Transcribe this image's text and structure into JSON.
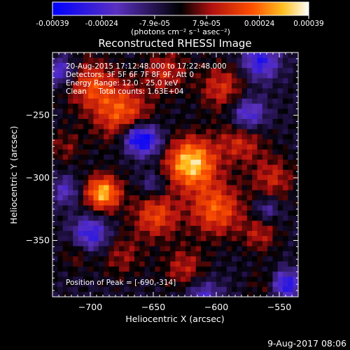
{
  "chart_data": {
    "type": "heatmap",
    "title": "Reconstructed RHESSI Image",
    "colorbar": {
      "ticks": [
        "-0.00039",
        "-0.00024",
        "-7.9e-05",
        "7.9e-05",
        "0.00024",
        "0.00039"
      ],
      "tick_values": [
        -0.00039,
        -0.00024,
        -7.9e-05,
        7.9e-05,
        0.00024,
        0.00039
      ],
      "range": [
        -0.00039,
        0.00039
      ],
      "unit_label": "(photons cm⁻² s⁻¹ asec⁻²)"
    },
    "info_lines": [
      "20-Aug-2015 17:12:48.000 to 17:22:48.000",
      "Detectors: 3F 5F 6F 7F 8F 9F, Att 0",
      "Energy Range: 12.0 - 25.0 keV",
      "Clean     Total counts: 1.63E+04"
    ],
    "peak_label": "Position of Peak = [-690,-314]",
    "xlabel": "Heliocentric X (arcsec)",
    "ylabel": "Heliocentric Y (arcsec)",
    "xlim": [
      -730,
      -535
    ],
    "ylim": [
      -395,
      -200
    ],
    "x_ticks": [
      {
        "value": -700,
        "label": "−700"
      },
      {
        "value": -650,
        "label": "−650"
      },
      {
        "value": -600,
        "label": "−600"
      },
      {
        "value": -550,
        "label": "−550"
      }
    ],
    "y_ticks": [
      {
        "value": -250,
        "label": "−250"
      },
      {
        "value": -300,
        "label": "−300"
      },
      {
        "value": -350,
        "label": "−350"
      }
    ],
    "grid": false,
    "colormap": [
      "#0000ff",
      "#5a30c0",
      "#000000",
      "#b01010",
      "#ff5000",
      "#ffc020",
      "#ffffff"
    ],
    "blobs": [
      {
        "x": -620,
        "y": -288,
        "v": 0.00038,
        "s": 14
      },
      {
        "x": -690,
        "y": -312,
        "v": 0.00035,
        "s": 10
      },
      {
        "x": -675,
        "y": -248,
        "v": 0.00024,
        "s": 16
      },
      {
        "x": -700,
        "y": -225,
        "v": 0.0002,
        "s": 14
      },
      {
        "x": -600,
        "y": -325,
        "v": 0.00025,
        "s": 15
      },
      {
        "x": -648,
        "y": -330,
        "v": 0.00022,
        "s": 13
      },
      {
        "x": -580,
        "y": -270,
        "v": 0.00018,
        "s": 13
      },
      {
        "x": -555,
        "y": -300,
        "v": 0.00016,
        "s": 12
      },
      {
        "x": -595,
        "y": -228,
        "v": 0.00018,
        "s": 13
      },
      {
        "x": -640,
        "y": -215,
        "v": 0.00016,
        "s": 12
      },
      {
        "x": -565,
        "y": -345,
        "v": 0.00014,
        "s": 10
      },
      {
        "x": -675,
        "y": -362,
        "v": 0.00012,
        "s": 12
      },
      {
        "x": -720,
        "y": -275,
        "v": 0.0001,
        "s": 10
      },
      {
        "x": -625,
        "y": -372,
        "v": 0.00015,
        "s": 12
      },
      {
        "x": -710,
        "y": -360,
        "v": 0.0001,
        "s": 9
      },
      {
        "x": -560,
        "y": -385,
        "v": 8e-05,
        "s": 10
      },
      {
        "x": -655,
        "y": -270,
        "v": -0.00026,
        "s": 9
      },
      {
        "x": -665,
        "y": -268,
        "v": -0.00022,
        "s": 8
      },
      {
        "x": -575,
        "y": -250,
        "v": -0.00025,
        "s": 10
      },
      {
        "x": -700,
        "y": -345,
        "v": -0.00026,
        "s": 10
      },
      {
        "x": -565,
        "y": -207,
        "v": -0.00026,
        "s": 10
      },
      {
        "x": -723,
        "y": -215,
        "v": -0.00022,
        "s": 8
      },
      {
        "x": -720,
        "y": -310,
        "v": -0.00016,
        "s": 8
      },
      {
        "x": -545,
        "y": -385,
        "v": -0.0003,
        "s": 8
      },
      {
        "x": -650,
        "y": -305,
        "v": -0.00013,
        "s": 7
      },
      {
        "x": -610,
        "y": -395,
        "v": -0.00018,
        "s": 10
      },
      {
        "x": -560,
        "y": -325,
        "v": -0.00014,
        "s": 7
      }
    ]
  },
  "footer": {
    "date": "9-Aug-2017 08:06"
  }
}
